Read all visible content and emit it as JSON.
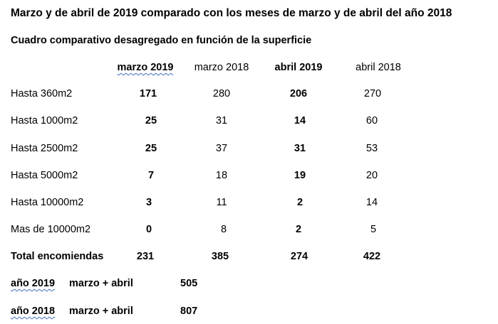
{
  "title": "Marzo y de abril de 2019 comparado con los meses de marzo y de abril del año 2018",
  "subtitle": "Cuadro comparativo desagregado en función de la superficie",
  "table": {
    "headers": [
      "marzo 2019",
      "marzo 2018",
      "abril 2019",
      "abril 2018"
    ],
    "rows": [
      {
        "label": "Hasta 360m2",
        "values": [
          "171",
          "280",
          "206",
          "270"
        ]
      },
      {
        "label": "Hasta 1000m2",
        "values": [
          "25",
          "31",
          "14",
          "60"
        ]
      },
      {
        "label": "Hasta 2500m2",
        "values": [
          "25",
          "37",
          "31",
          "53"
        ]
      },
      {
        "label": "Hasta 5000m2",
        "values": [
          "7",
          "18",
          "19",
          "20"
        ]
      },
      {
        "label": "Hasta 10000m2",
        "values": [
          "3",
          "11",
          "2",
          "14"
        ]
      },
      {
        "label": "Mas de 10000m2",
        "values": [
          "0",
          "8",
          "2",
          "5"
        ]
      }
    ],
    "total": {
      "label": "Total encomiendas",
      "values": [
        "231",
        "385",
        "274",
        "422"
      ]
    }
  },
  "summary": [
    {
      "year": "año 2019",
      "period": "marzo + abril",
      "value": "505"
    },
    {
      "year": "año 2018",
      "period": "marzo + abril",
      "value": "807"
    }
  ]
}
